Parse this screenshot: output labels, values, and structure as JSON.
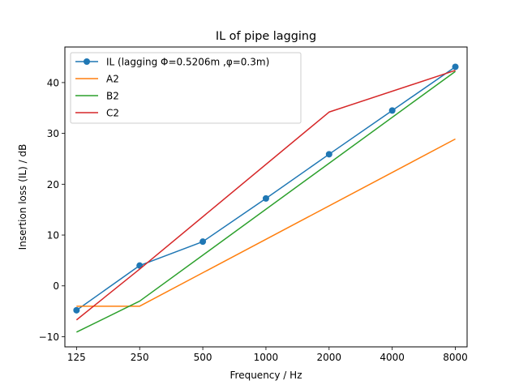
{
  "chart_data": {
    "type": "line",
    "title": "IL of pipe lagging",
    "xlabel": "Frequency / Hz",
    "ylabel": "Insertion loss (IL) / dB",
    "x_scale": "log2",
    "x_ticks": [
      "125",
      "250",
      "500",
      "1000",
      "2000",
      "4000",
      "8000"
    ],
    "x": [
      125,
      250,
      500,
      1000,
      2000,
      4000,
      8000
    ],
    "xlim": [
      110,
      9100
    ],
    "ylim": [
      -12,
      47
    ],
    "y_ticks": [
      "−10",
      "0",
      "10",
      "20",
      "30",
      "40"
    ],
    "grid": false,
    "legend_position": "top-left",
    "series": [
      {
        "name": "IL (lagging Φ=0.5206m ,φ=0.3m)",
        "color": "#1f77b4",
        "marker": "circle",
        "points": [
          [
            125,
            -4.8
          ],
          [
            250,
            4.0
          ],
          [
            500,
            8.7
          ],
          [
            1000,
            17.2
          ],
          [
            2000,
            25.9
          ],
          [
            4000,
            34.5
          ],
          [
            8000,
            43.1
          ]
        ]
      },
      {
        "name": "A2",
        "color": "#ff7f0e",
        "marker": "none",
        "points": [
          [
            125,
            -4.0
          ],
          [
            250,
            -4.0
          ],
          [
            8000,
            28.9
          ]
        ]
      },
      {
        "name": "B2",
        "color": "#2ca02c",
        "marker": "none",
        "points": [
          [
            125,
            -9.1
          ],
          [
            250,
            -3.0
          ],
          [
            8000,
            42.2
          ]
        ]
      },
      {
        "name": "C2",
        "color": "#d62728",
        "marker": "none",
        "points": [
          [
            125,
            -6.7
          ],
          [
            250,
            3.3
          ],
          [
            2000,
            34.2
          ],
          [
            8000,
            42.4
          ]
        ]
      }
    ]
  }
}
